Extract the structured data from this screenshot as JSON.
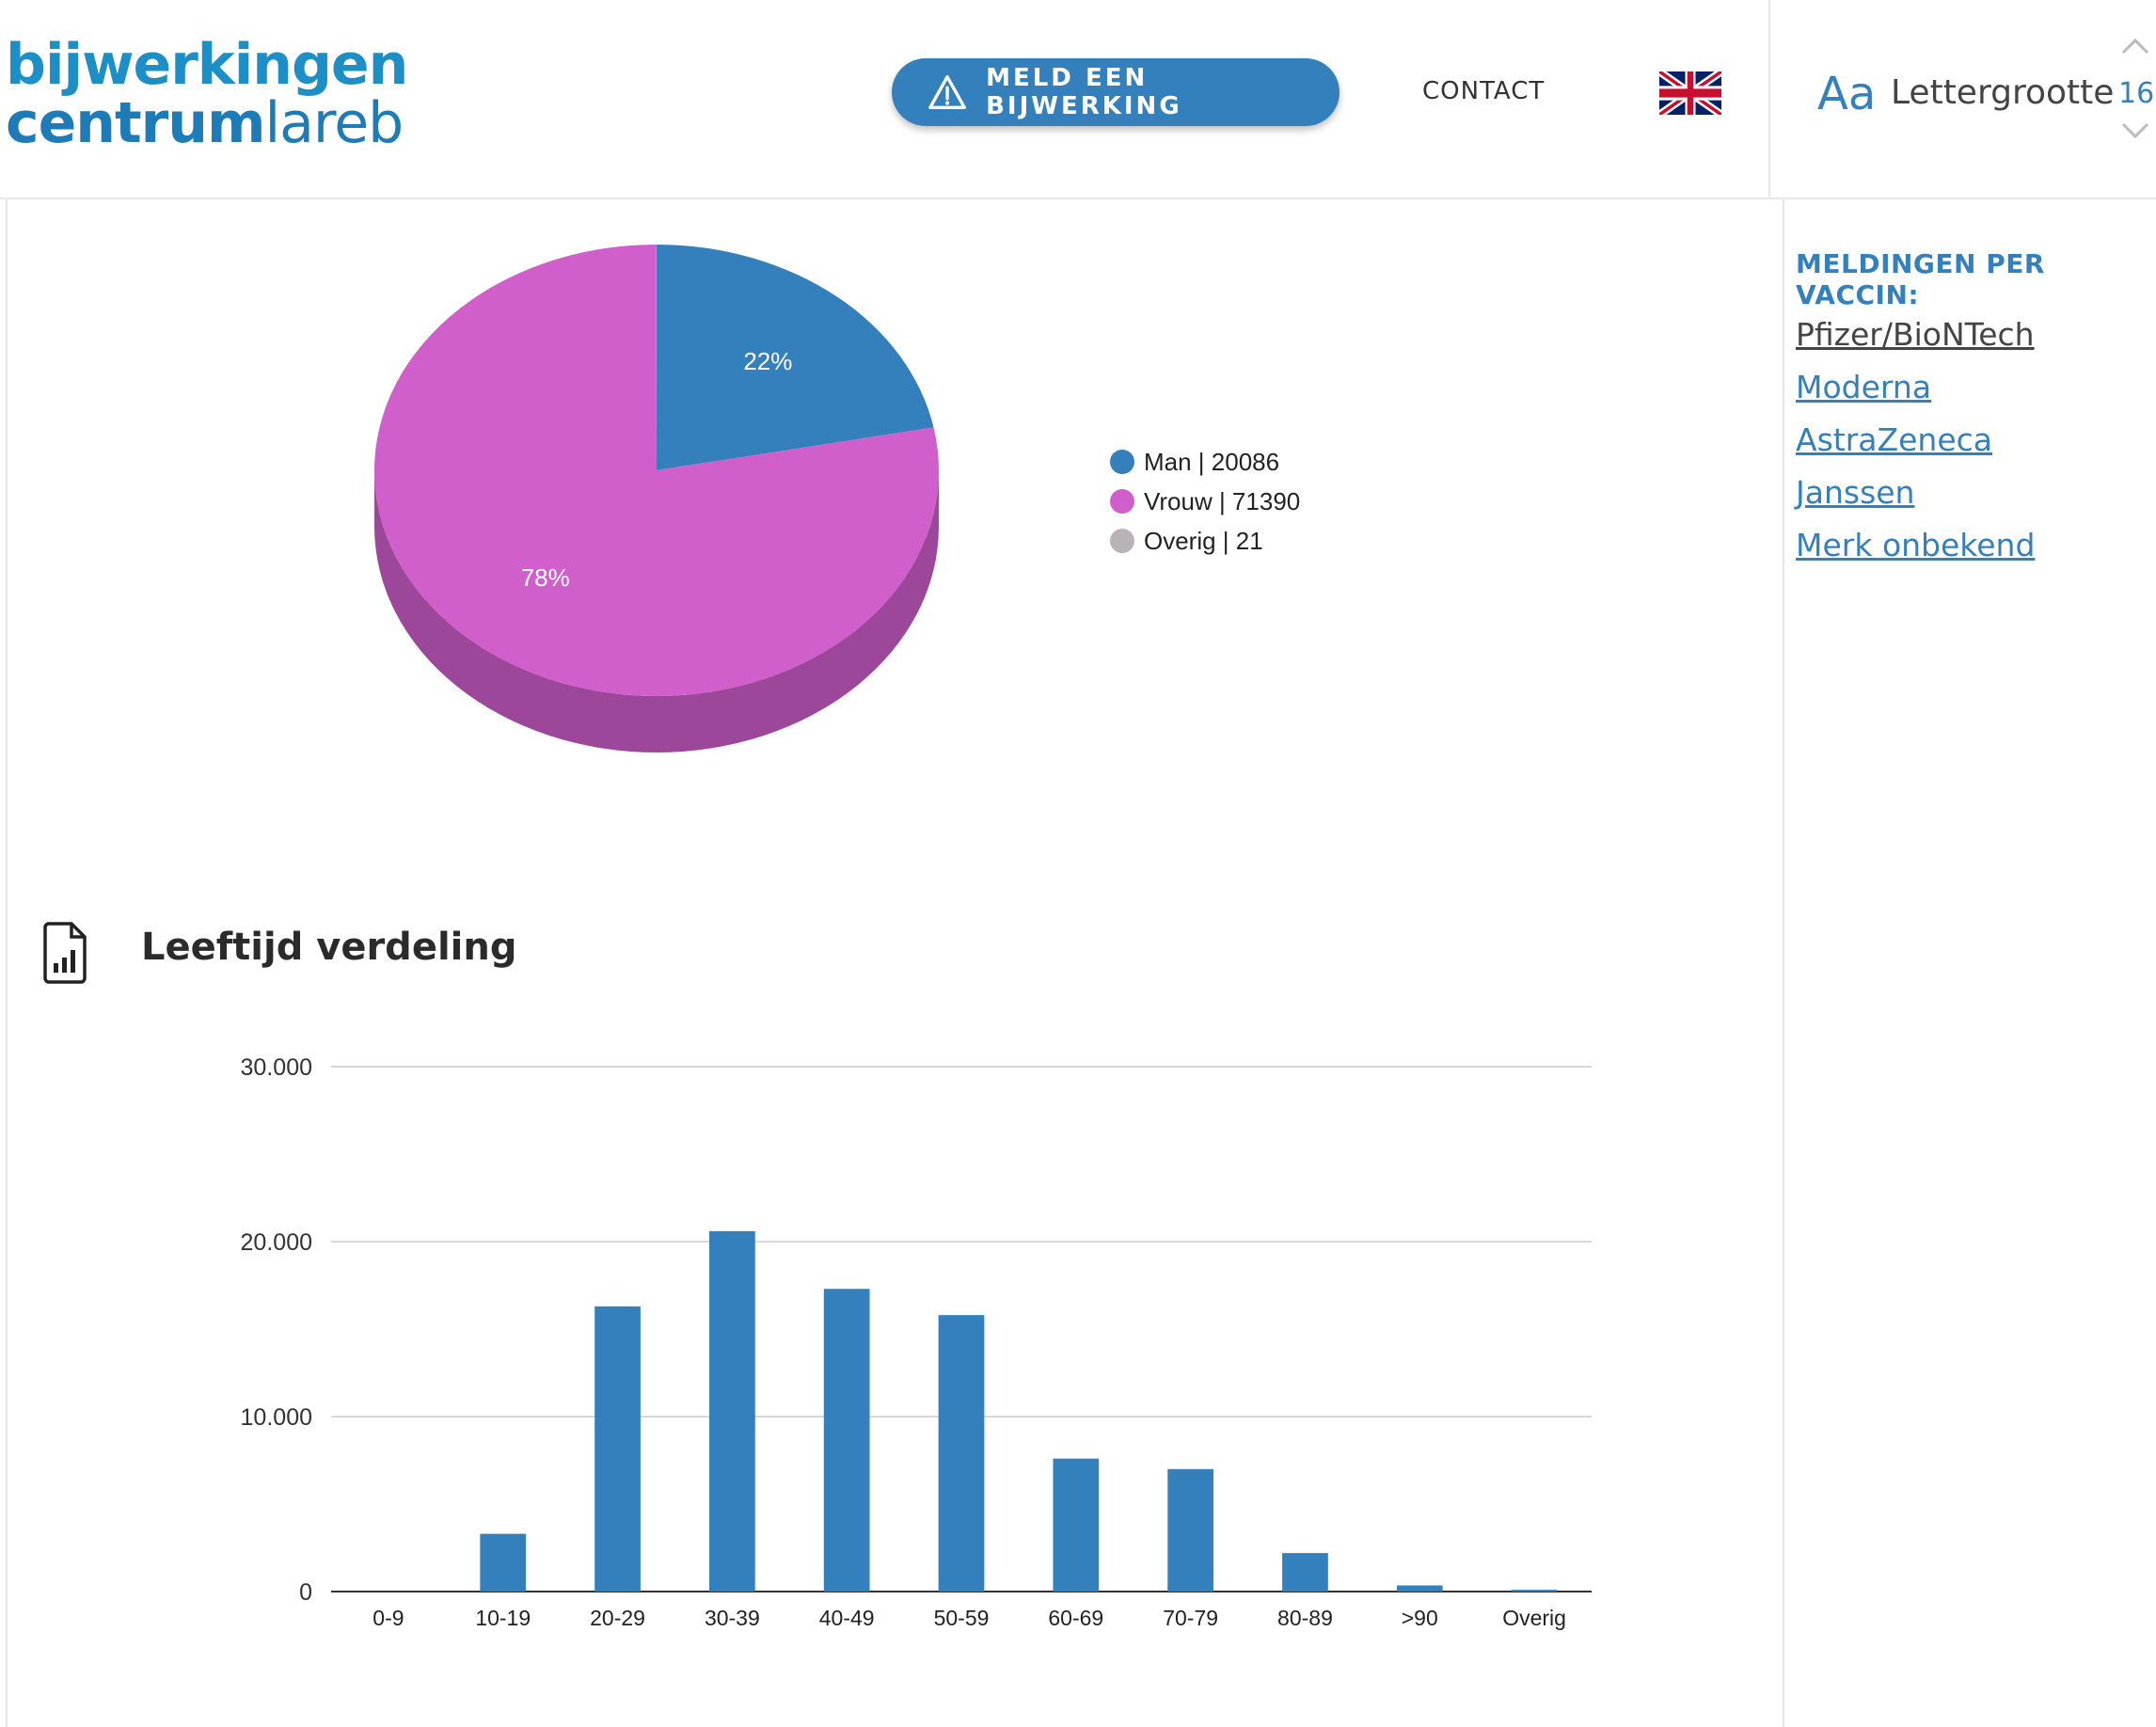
{
  "header": {
    "logo_line1": "bijwerkingen",
    "logo_line2_bold": "centrum",
    "logo_line2_light": "lareb",
    "report_button": "MELD EEN BIJWERKING",
    "contact": "CONTACT",
    "flag_icon": "uk-flag-icon",
    "font_size_label_aa": "Aa",
    "font_size_label": "Lettergrootte",
    "font_size_value": "16"
  },
  "sidebar": {
    "heading": "MELDINGEN PER VACCIN:",
    "items": [
      {
        "label": "Pfizer/BioNTech",
        "active": true
      },
      {
        "label": "Moderna",
        "active": false
      },
      {
        "label": "AstraZeneca",
        "active": false
      },
      {
        "label": "Janssen",
        "active": false
      },
      {
        "label": "Merk onbekend",
        "active": false
      }
    ]
  },
  "main": {
    "age_section_title": "Leeftijd verdeling",
    "age_section_icon": "report-chart-icon"
  },
  "colors": {
    "accent": "#3380bd",
    "man": "#3380bd",
    "vrouw": "#d05fcc",
    "vrouw_side": "#9c479a",
    "overig": "#b9b2b8"
  },
  "chart_data": [
    {
      "type": "pie",
      "slices": [
        {
          "label": "Man | 20086",
          "value": 20086,
          "pct_label": "22%",
          "color": "#3380bd"
        },
        {
          "label": "Vrouw | 71390",
          "value": 71390,
          "pct_label": "78%",
          "color": "#d05fcc"
        },
        {
          "label": "Overig | 21",
          "value": 21,
          "pct_label": "",
          "color": "#b9b2b8"
        }
      ],
      "legend": "right"
    },
    {
      "type": "bar",
      "categories": [
        "0-9",
        "10-19",
        "20-29",
        "30-39",
        "40-49",
        "50-59",
        "60-69",
        "70-79",
        "80-89",
        ">90",
        "Overig"
      ],
      "values": [
        0,
        3300,
        16300,
        20600,
        17300,
        15800,
        7600,
        7000,
        2200,
        350,
        100
      ],
      "ylim": [
        0,
        30000
      ],
      "yticks": [
        0,
        10000,
        20000,
        30000
      ],
      "ytick_labels": [
        "0",
        "10.000",
        "20.000",
        "30.000"
      ],
      "grid": true,
      "color": "#3380bd"
    }
  ]
}
